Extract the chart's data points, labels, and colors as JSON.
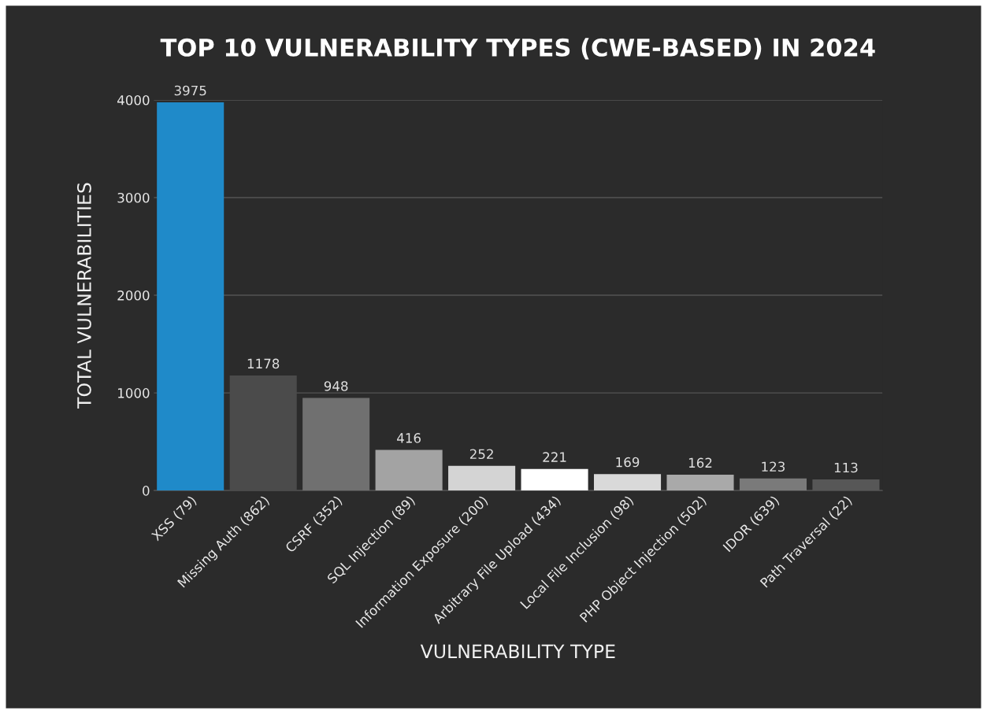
{
  "chart_data": {
    "type": "bar",
    "title": "TOP 10 VULNERABILITY TYPES (CWE-BASED) IN 2024",
    "xlabel": "VULNERABILITY TYPE",
    "ylabel": "TOTAL VULNERABILITIES",
    "categories": [
      "XSS (79)",
      "Missing Auth (862)",
      "CSRF (352)",
      "SQL Injection (89)",
      "Information Exposure (200)",
      "Arbitrary File Upload (434)",
      "Local File Inclusion (98)",
      "PHP Object Injection (502)",
      "IDOR (639)",
      "Path Traversal (22)"
    ],
    "values": [
      3975,
      1178,
      948,
      416,
      252,
      221,
      169,
      162,
      123,
      113
    ],
    "colors": [
      "#1f8ac9",
      "#4b4b4b",
      "#707070",
      "#a3a3a3",
      "#d4d4d4",
      "#ffffff",
      "#d9d9d9",
      "#a9a9a9",
      "#7a7a7a",
      "#575757"
    ],
    "data_labels": true,
    "ylim": [
      0,
      4000
    ],
    "yticks": [
      0,
      1000,
      2000,
      3000,
      4000
    ],
    "grid": "y",
    "legend": false
  }
}
